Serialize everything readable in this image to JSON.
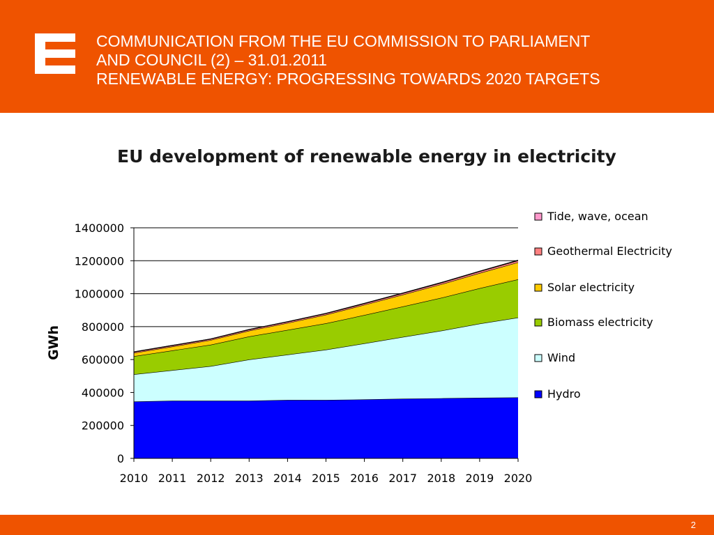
{
  "header": {
    "title_lines": [
      "COMMUNICATION FROM THE EU COMMISSION TO PARLIAMENT",
      "AND COUNCIL (2) – 31.01.2011",
      "RENEWABLE ENERGY: PROGRESSING TOWARDS 2020 TARGETS"
    ],
    "logo_icon": "cez-logo-icon"
  },
  "footer": {
    "page_number": "2"
  },
  "colors": {
    "brand_orange": "#ef5300"
  },
  "chart_data": {
    "type": "area",
    "stacked": true,
    "title": "EU development of renewable energy in electricity",
    "ylabel": "GWh",
    "xlabel": "",
    "x": [
      "2010",
      "2011",
      "2012",
      "2013",
      "2014",
      "2015",
      "2016",
      "2017",
      "2018",
      "2019",
      "2020"
    ],
    "ylim": [
      0,
      1400000
    ],
    "yticks": [
      0,
      200000,
      400000,
      600000,
      800000,
      1000000,
      1200000,
      1400000
    ],
    "ytick_labels": [
      "0",
      "200000",
      "400000",
      "600000",
      "800000",
      "1000000",
      "1200000",
      "1400000"
    ],
    "grid": true,
    "legend_position": "right",
    "series": [
      {
        "name": "Hydro",
        "color": "#0000ff",
        "values": [
          345000,
          350000,
          350000,
          350000,
          355000,
          355000,
          358000,
          362000,
          365000,
          368000,
          370000
        ]
      },
      {
        "name": "Wind",
        "color": "#ccffff",
        "values": [
          165000,
          185000,
          210000,
          250000,
          275000,
          305000,
          340000,
          375000,
          410000,
          450000,
          485000
        ]
      },
      {
        "name": "Biomass electricity",
        "color": "#99cc00",
        "values": [
          110000,
          120000,
          130000,
          140000,
          150000,
          160000,
          172000,
          185000,
          200000,
          215000,
          232000
        ]
      },
      {
        "name": "Solar electricity",
        "color": "#ffcc00",
        "values": [
          20000,
          24000,
          28000,
          35000,
          42000,
          52000,
          62000,
          72000,
          82000,
          92000,
          103000
        ]
      },
      {
        "name": "Geothermal Electricity",
        "color": "#ff8080",
        "values": [
          6000,
          6200,
          6400,
          6600,
          7000,
          7500,
          8000,
          8500,
          9000,
          10000,
          11000
        ]
      },
      {
        "name": "Tide, wave, ocean",
        "color": "#ff99cc",
        "values": [
          500,
          500,
          600,
          700,
          800,
          900,
          1000,
          1200,
          1400,
          1600,
          2000
        ]
      }
    ],
    "legend_order": [
      "Tide, wave, ocean",
      "Geothermal Electricity",
      "Solar electricity",
      "Biomass electricity",
      "Wind",
      "Hydro"
    ]
  }
}
